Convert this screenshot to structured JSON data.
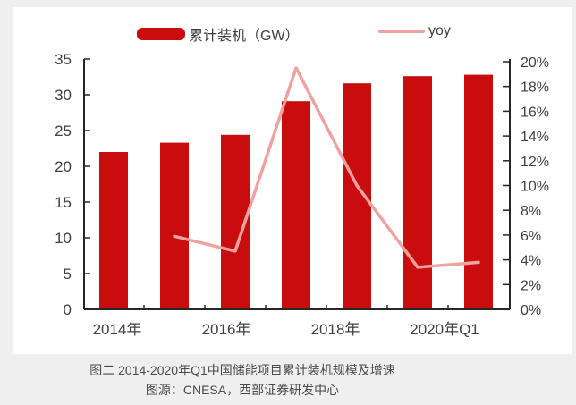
{
  "page": {
    "background_color": "#efefef",
    "card_color": "#ffffff"
  },
  "legend": {
    "bar_label": "累计装机（GW）",
    "line_label": "yoy"
  },
  "chart_data": {
    "type": "bar+line",
    "categories": [
      "2014年",
      "2015年",
      "2016年",
      "2017年",
      "2018年",
      "2019年",
      "2020年Q1"
    ],
    "series": [
      {
        "name": "累计装机（GW）",
        "type": "bar",
        "axis": "left",
        "color": "#c90d0f",
        "values": [
          22.0,
          23.3,
          24.4,
          29.1,
          31.6,
          32.6,
          32.8
        ]
      },
      {
        "name": "yoy",
        "type": "line",
        "axis": "right",
        "color": "#f2a29e",
        "values": [
          null,
          5.9,
          4.7,
          19.5,
          10.0,
          3.4,
          3.8
        ]
      }
    ],
    "left_axis": {
      "min": 0,
      "max": 35,
      "step": 5,
      "tick_labels": [
        "0",
        "5",
        "10",
        "15",
        "20",
        "25",
        "30",
        "35"
      ]
    },
    "right_axis": {
      "min": 0,
      "max": 20,
      "step": 2,
      "tick_labels": [
        "0%",
        "2%",
        "4%",
        "6%",
        "8%",
        "10%",
        "12%",
        "14%",
        "16%",
        "18%",
        "20%"
      ]
    },
    "x_axis": {
      "visible_tick_labels": [
        "2014年",
        "2016年",
        "2018年",
        "2020年Q1"
      ],
      "visible_tick_indices": [
        0,
        2,
        4,
        6
      ]
    },
    "grid": false,
    "legend_position": "top"
  },
  "caption": {
    "line1": "图二 2014-2020年Q1中国储能项目累计装机规模及增速",
    "line2": "图源：CNESA，西部证券研发中心"
  },
  "colors": {
    "bar": "#c90d0f",
    "line": "#f2a29e",
    "axis": "#262626",
    "tick_text": "#404040",
    "caption_text": "#4a4a4a"
  }
}
